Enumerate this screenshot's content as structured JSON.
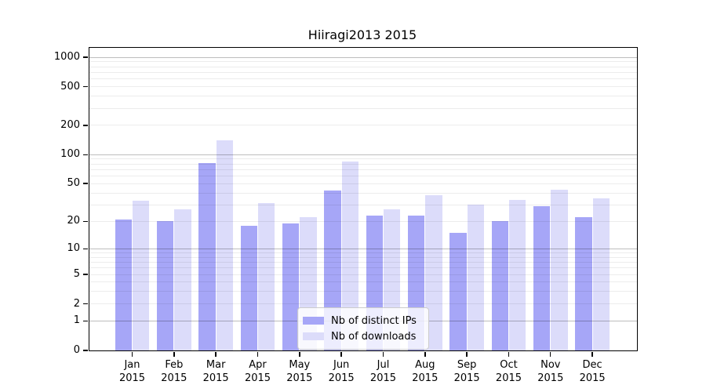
{
  "figure": {
    "background": "#ffffff"
  },
  "chart_data": {
    "type": "bar",
    "title": "Hiiragi2013 2015",
    "categories": [
      "Jan",
      "Feb",
      "Mar",
      "Apr",
      "May",
      "Jun",
      "Jul",
      "Aug",
      "Sep",
      "Oct",
      "Nov",
      "Dec"
    ],
    "year_label": "2015",
    "series": [
      {
        "name": "Nb of distinct IPs",
        "color": "#a6a6f7",
        "values": [
          21,
          20,
          81,
          18,
          19,
          42,
          23,
          23,
          15,
          20,
          29,
          22
        ]
      },
      {
        "name": "Nb of downloads",
        "color": "#dcdcfa",
        "values": [
          33,
          27,
          140,
          31,
          22,
          85,
          27,
          38,
          30,
          34,
          43,
          35
        ]
      }
    ],
    "xlabel": "",
    "ylabel": "",
    "yscale": "log1p",
    "ylim": [
      0,
      1250
    ],
    "yticks": [
      1000,
      500,
      200,
      100,
      50,
      20,
      10,
      5,
      2,
      1,
      0
    ],
    "grid": {
      "on": true,
      "drawn_over_bars": true,
      "major_values": [
        1,
        10,
        100,
        1000
      ],
      "minor_subs": [
        2,
        3,
        4,
        5,
        6,
        7,
        8,
        9
      ],
      "minor_decades": [
        1,
        10,
        100
      ]
    },
    "legend": {
      "position": "lower center",
      "entries": [
        "Nb of distinct IPs",
        "Nb of downloads"
      ]
    }
  }
}
